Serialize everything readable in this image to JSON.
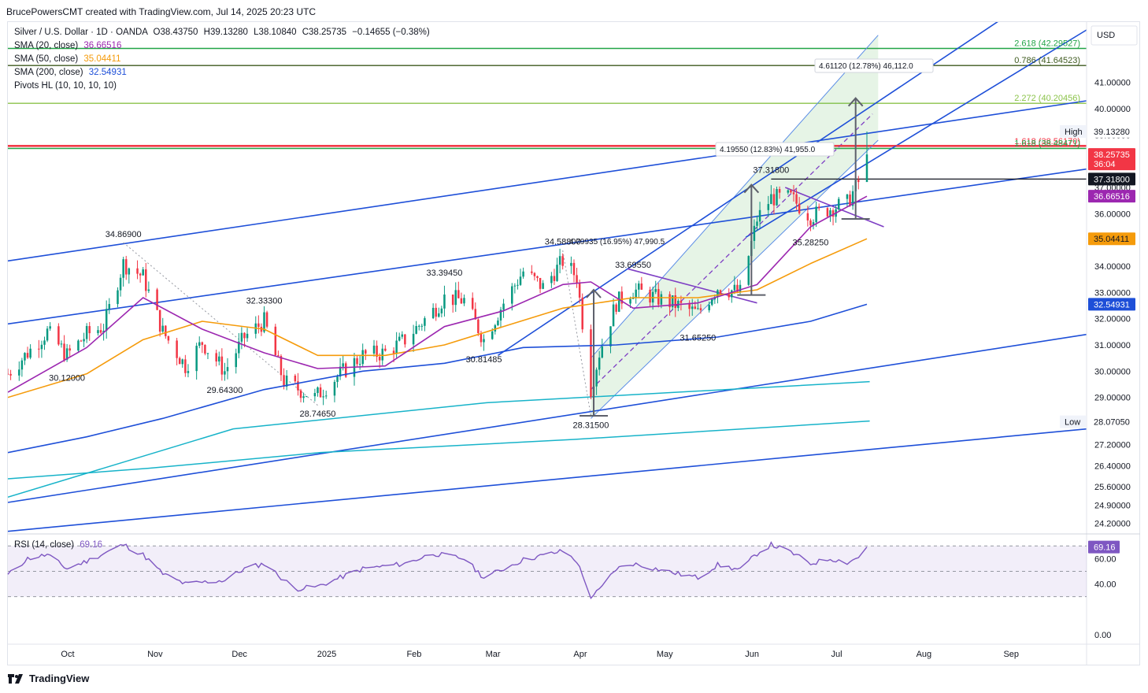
{
  "header": {
    "text": "BrucePowersCMT created with TradingView.com, Jul 14, 2025 20:23 UTC"
  },
  "symbol": {
    "name": "Silver / U.S. Dollar · 1D · OANDA",
    "open": "O38.43750",
    "high": "H39.13280",
    "low": "L38.10840",
    "close": "C38.25735",
    "change": "−0.14655 (−0.38%)"
  },
  "indicators": [
    {
      "label": "SMA (20, close)",
      "value": "36.66516",
      "color": "#9c27b0"
    },
    {
      "label": "SMA (50, close)",
      "value": "35.04411",
      "color": "#f59b0b"
    },
    {
      "label": "SMA (200, close)",
      "value": "32.54931",
      "color": "#1e4fd8"
    },
    {
      "label": "Pivots HL (10, 10, 10, 10)",
      "value": "",
      "color": "#131722"
    }
  ],
  "currency": "USD",
  "price_axis": {
    "ticks": [
      "41.00000",
      "40.00000",
      "39.00000",
      "38.00000",
      "37.00000",
      "36.00000",
      "35.00000",
      "34.00000",
      "33.00000",
      "32.00000",
      "31.00000",
      "30.00000",
      "29.00000",
      "28.00000",
      "27.20000",
      "26.40000",
      "25.60000",
      "24.90000",
      "24.20000"
    ],
    "badges": [
      {
        "id": "high",
        "text": "39.13280",
        "bg": "#ffffff",
        "fg": "#131722",
        "price": 39.1328,
        "tag": "High"
      },
      {
        "id": "last",
        "text": "38.25735",
        "sub": "36:04",
        "bg": "#f23645",
        "fg": "#ffffff",
        "price": 38.25735
      },
      {
        "id": "line",
        "text": "37.31800",
        "bg": "#131722",
        "fg": "#ffffff",
        "price": 37.318
      },
      {
        "id": "sma20",
        "text": "36.66516",
        "bg": "#9c27b0",
        "fg": "#ffffff",
        "price": 36.66516
      },
      {
        "id": "sma50",
        "text": "35.04411",
        "bg": "#f59b0b",
        "fg": "#131722",
        "price": 35.04411
      },
      {
        "id": "sma200",
        "text": "32.54931",
        "bg": "#1e4fd8",
        "fg": "#ffffff",
        "price": 32.54931
      },
      {
        "id": "low",
        "text": "28.07050",
        "bg": "#ffffff",
        "fg": "#131722",
        "price": 28.0705,
        "tag": "Low"
      }
    ]
  },
  "time_axis": {
    "labels": [
      "Oct",
      "Nov",
      "Dec",
      "2025",
      "Feb",
      "Mar",
      "Apr",
      "May",
      "Jun",
      "Jul",
      "Aug",
      "Sep"
    ]
  },
  "fib_levels": [
    {
      "label": "2.618 (42.29527)",
      "price": 42.29527,
      "color": "#22a447"
    },
    {
      "label": "0.786 (41.64523)",
      "price": 41.64523,
      "color": "#3e5a1e"
    },
    {
      "label": "2.272 (40.20456)",
      "price": 40.20456,
      "color": "#8bc34a"
    },
    {
      "label": "1.618 (38.56170)",
      "price": 38.5617,
      "color": "#f23645"
    },
    {
      "label": "1.618 (38.48471)",
      "price": 38.48471,
      "color": "#22a447"
    }
  ],
  "measures": [
    {
      "label": "4.61120 (12.78%) 46,112.0"
    },
    {
      "label": "4.19550 (12.83%) 41,955.0"
    },
    {
      "label": "4.79935 (16.95%) 47,990.5"
    }
  ],
  "pivot_labels": [
    {
      "text": "34.86900",
      "date": "2024-10-23",
      "price": 34.869,
      "pos": "above"
    },
    {
      "text": "30.12000",
      "date": "2024-10-03",
      "price": 30.12,
      "pos": "below"
    },
    {
      "text": "32.33300",
      "date": "2024-12-12",
      "price": 32.333,
      "pos": "above"
    },
    {
      "text": "29.64300",
      "date": "2024-11-28",
      "price": 29.643,
      "pos": "below"
    },
    {
      "text": "28.74650",
      "date": "2024-12-31",
      "price": 28.7465,
      "pos": "below"
    },
    {
      "text": "33.39450",
      "date": "2025-02-14",
      "price": 33.3945,
      "pos": "above"
    },
    {
      "text": "30.81485",
      "date": "2025-02-28",
      "price": 30.81485,
      "pos": "below"
    },
    {
      "text": "34.58800",
      "date": "2025-03-28",
      "price": 34.588,
      "pos": "above"
    },
    {
      "text": "28.31500",
      "date": "2025-04-07",
      "price": 28.315,
      "pos": "below"
    },
    {
      "text": "33.69550",
      "date": "2025-04-22",
      "price": 33.6955,
      "pos": "above"
    },
    {
      "text": "31.65250",
      "date": "2025-05-15",
      "price": 31.6525,
      "pos": "below"
    },
    {
      "text": "37.31800",
      "date": "2025-06-10",
      "price": 37.318,
      "pos": "above"
    },
    {
      "text": "35.28250",
      "date": "2025-06-24",
      "price": 35.2825,
      "pos": "below"
    }
  ],
  "rsi": {
    "label": "RSI (14, close)",
    "value": "69.16",
    "color": "#7e57c2",
    "ticks": [
      "60.00",
      "40.00",
      "0.00"
    ],
    "badge": "69.16"
  },
  "chart_data": {
    "type": "candlestick",
    "title": "Silver / U.S. Dollar · 1D · OANDA",
    "x_start": "2024-09-12",
    "x_end": "2025-09-30",
    "ylim": [
      23.8,
      43.3
    ],
    "last_close": 38.25735,
    "anchors": [
      [
        "2024-09-12",
        29.9
      ],
      [
        "2024-09-19",
        30.7
      ],
      [
        "2024-09-26",
        31.5
      ],
      [
        "2024-10-03",
        30.6
      ],
      [
        "2024-10-10",
        31.4
      ],
      [
        "2024-10-16",
        31.7
      ],
      [
        "2024-10-23",
        34.1
      ],
      [
        "2024-10-30",
        33.6
      ],
      [
        "2024-11-06",
        31.5
      ],
      [
        "2024-11-14",
        30.2
      ],
      [
        "2024-11-20",
        31.1
      ],
      [
        "2024-11-28",
        30.0
      ],
      [
        "2024-12-05",
        31.3
      ],
      [
        "2024-12-12",
        31.9
      ],
      [
        "2024-12-19",
        29.6
      ],
      [
        "2024-12-30",
        29.0
      ],
      [
        "2025-01-08",
        29.9
      ],
      [
        "2025-01-16",
        30.6
      ],
      [
        "2025-01-24",
        30.7
      ],
      [
        "2025-01-31",
        31.2
      ],
      [
        "2025-02-10",
        32.3
      ],
      [
        "2025-02-14",
        32.8
      ],
      [
        "2025-02-21",
        32.7
      ],
      [
        "2025-02-28",
        31.2
      ],
      [
        "2025-03-07",
        32.6
      ],
      [
        "2025-03-14",
        33.8
      ],
      [
        "2025-03-21",
        33.2
      ],
      [
        "2025-03-28",
        34.2
      ],
      [
        "2025-04-02",
        33.6
      ],
      [
        "2025-04-07",
        29.3
      ],
      [
        "2025-04-10",
        30.7
      ],
      [
        "2025-04-16",
        32.6
      ],
      [
        "2025-04-22",
        33.1
      ],
      [
        "2025-04-30",
        32.8
      ],
      [
        "2025-05-08",
        32.5
      ],
      [
        "2025-05-15",
        32.2
      ],
      [
        "2025-05-22",
        33.2
      ],
      [
        "2025-05-30",
        33.0
      ],
      [
        "2025-06-05",
        35.8
      ],
      [
        "2025-06-10",
        36.6
      ],
      [
        "2025-06-17",
        36.6
      ],
      [
        "2025-06-24",
        35.9
      ],
      [
        "2025-07-01",
        36.2
      ],
      [
        "2025-07-07",
        36.4
      ],
      [
        "2025-07-11",
        37.2
      ],
      [
        "2025-07-14",
        38.26
      ]
    ],
    "sma20": [
      [
        "2024-09-12",
        29.2
      ],
      [
        "2024-10-10",
        30.9
      ],
      [
        "2024-10-30",
        32.8
      ],
      [
        "2024-11-20",
        31.6
      ],
      [
        "2024-12-12",
        30.7
      ],
      [
        "2024-12-31",
        30.1
      ],
      [
        "2025-01-24",
        30.2
      ],
      [
        "2025-02-14",
        31.7
      ],
      [
        "2025-03-07",
        32.3
      ],
      [
        "2025-03-28",
        33.3
      ],
      [
        "2025-04-07",
        33.4
      ],
      [
        "2025-04-22",
        32.4
      ],
      [
        "2025-05-15",
        32.6
      ],
      [
        "2025-06-05",
        33.3
      ],
      [
        "2025-06-24",
        35.5
      ],
      [
        "2025-07-14",
        36.66516
      ]
    ],
    "sma50": [
      [
        "2024-09-12",
        29.0
      ],
      [
        "2024-10-10",
        29.9
      ],
      [
        "2024-10-30",
        31.2
      ],
      [
        "2024-11-20",
        31.9
      ],
      [
        "2024-12-12",
        31.6
      ],
      [
        "2024-12-31",
        30.6
      ],
      [
        "2025-01-24",
        30.6
      ],
      [
        "2025-02-14",
        31.0
      ],
      [
        "2025-03-07",
        31.7
      ],
      [
        "2025-03-28",
        32.4
      ],
      [
        "2025-04-22",
        32.8
      ],
      [
        "2025-05-15",
        32.8
      ],
      [
        "2025-06-05",
        33.1
      ],
      [
        "2025-06-24",
        34.1
      ],
      [
        "2025-07-14",
        35.04411
      ]
    ],
    "sma200": [
      [
        "2024-09-12",
        26.9
      ],
      [
        "2024-10-10",
        27.5
      ],
      [
        "2024-11-06",
        28.2
      ],
      [
        "2024-12-12",
        29.3
      ],
      [
        "2025-01-16",
        30.0
      ],
      [
        "2025-02-14",
        30.3
      ],
      [
        "2025-03-14",
        30.9
      ],
      [
        "2025-04-16",
        31.0
      ],
      [
        "2025-05-22",
        31.3
      ],
      [
        "2025-06-24",
        31.9
      ],
      [
        "2025-07-14",
        32.54931
      ]
    ],
    "rsi_anchors": [
      [
        "2024-09-12",
        47
      ],
      [
        "2024-09-19",
        60
      ],
      [
        "2024-09-26",
        63
      ],
      [
        "2024-10-03",
        52
      ],
      [
        "2024-10-10",
        58
      ],
      [
        "2024-10-23",
        71
      ],
      [
        "2024-10-30",
        63
      ],
      [
        "2024-11-06",
        48
      ],
      [
        "2024-11-14",
        40
      ],
      [
        "2024-11-28",
        43
      ],
      [
        "2024-12-05",
        52
      ],
      [
        "2024-12-12",
        56
      ],
      [
        "2024-12-23",
        36
      ],
      [
        "2024-12-31",
        38
      ],
      [
        "2025-01-16",
        52
      ],
      [
        "2025-01-31",
        56
      ],
      [
        "2025-02-10",
        64
      ],
      [
        "2025-02-21",
        60
      ],
      [
        "2025-02-28",
        45
      ],
      [
        "2025-03-14",
        59
      ],
      [
        "2025-03-28",
        66
      ],
      [
        "2025-04-02",
        58
      ],
      [
        "2025-04-07",
        30
      ],
      [
        "2025-04-10",
        35
      ],
      [
        "2025-04-16",
        52
      ],
      [
        "2025-04-22",
        56
      ],
      [
        "2025-05-08",
        48
      ],
      [
        "2025-05-15",
        45
      ],
      [
        "2025-05-22",
        55
      ],
      [
        "2025-05-30",
        51
      ],
      [
        "2025-06-05",
        64
      ],
      [
        "2025-06-10",
        71
      ],
      [
        "2025-06-17",
        65
      ],
      [
        "2025-06-24",
        56
      ],
      [
        "2025-07-01",
        60
      ],
      [
        "2025-07-07",
        57
      ],
      [
        "2025-07-11",
        61
      ],
      [
        "2025-07-14",
        69.16
      ]
    ]
  }
}
